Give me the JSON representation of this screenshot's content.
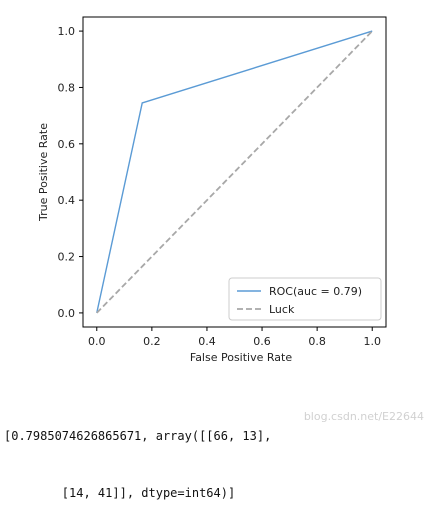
{
  "chart_data": {
    "type": "line",
    "xlabel": "False Positive Rate",
    "ylabel": "True Positive Rate",
    "xlim": [
      -0.05,
      1.05
    ],
    "ylim": [
      -0.05,
      1.05
    ],
    "x_ticks": [
      "0.0",
      "0.2",
      "0.4",
      "0.6",
      "0.8",
      "1.0"
    ],
    "y_ticks": [
      "0.0",
      "0.2",
      "0.4",
      "0.6",
      "0.8",
      "1.0"
    ],
    "grid": false,
    "legend_position": "lower-right",
    "series": [
      {
        "name": "ROC(auc = 0.79)",
        "x": [
          0.0,
          0.165,
          1.0
        ],
        "y": [
          0.0,
          0.745,
          1.0
        ],
        "color": "#5b9bd5",
        "style": "solid"
      },
      {
        "name": "Luck",
        "x": [
          0.0,
          1.0
        ],
        "y": [
          0.0,
          1.0
        ],
        "color": "#a8a8a8",
        "style": "dashed"
      }
    ]
  },
  "output": {
    "line1": "[0.7985074626865671, array([[66, 13],",
    "line2": "        [14, 41]], dtype=int64)]"
  },
  "watermark": "blog.csdn.net/E22644"
}
